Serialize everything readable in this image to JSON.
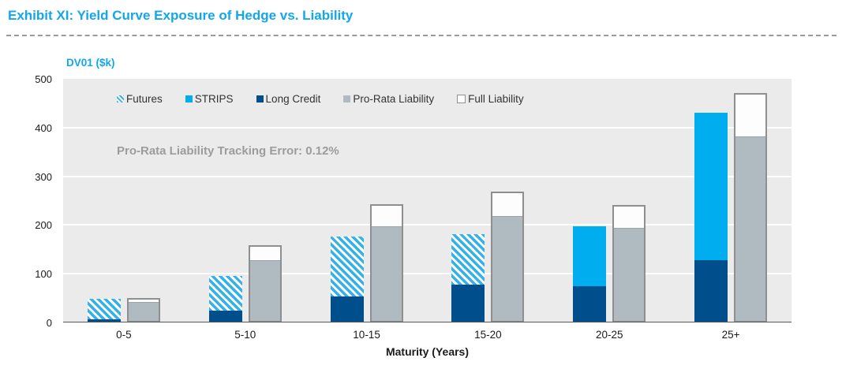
{
  "title": "Exhibit XI: Yield Curve Exposure of Hedge vs. Liability",
  "colors": {
    "title_blue": "#12a7e8",
    "futures_hatch": "#33b1e8",
    "strips": "#00aeef",
    "long_credit": "#004e8c",
    "pro_rata": "#afbac1",
    "full_liability_fill": "#fdfdfd",
    "full_liability_border": "#8f8f8f",
    "plot_background": "#ebebeb",
    "gridline": "#ffffff",
    "annotation_gray": "#9c9c9c"
  },
  "chart_data": {
    "type": "bar",
    "title": "Exhibit XI: Yield Curve Exposure of Hedge vs. Liability",
    "ylabel": "DV01 ($k)",
    "xlabel": "Maturity (Years)",
    "ylim": [
      0,
      500
    ],
    "yticks": [
      0,
      100,
      200,
      300,
      400,
      500
    ],
    "grid": true,
    "legend_position": "top-left-inside",
    "annotation": "Pro-Rata Liability Tracking Error: 0.12%",
    "categories": [
      "0-5",
      "5-10",
      "10-15",
      "15-20",
      "20-25",
      "25+"
    ],
    "legend": [
      "Futures",
      "STRIPS",
      "Long Credit",
      "Pro-Rata Liability",
      "Full Liability"
    ],
    "series": [
      {
        "name": "Long Credit",
        "group": "hedge",
        "style": "solid",
        "color": "#004e8c",
        "values": [
          7,
          25,
          54,
          77,
          75,
          128
        ]
      },
      {
        "name": "Futures",
        "group": "hedge",
        "style": "hatch",
        "color": "#33b1e8",
        "values": [
          41,
          71,
          123,
          104,
          0,
          0
        ]
      },
      {
        "name": "STRIPS",
        "group": "hedge",
        "style": "solid",
        "color": "#00aeef",
        "values": [
          0,
          0,
          0,
          0,
          122,
          302
        ]
      },
      {
        "name": "Pro-Rata Liability",
        "group": "liability",
        "style": "solid",
        "color": "#afbac1",
        "values": [
          38,
          123,
          192,
          213,
          190,
          377
        ]
      },
      {
        "name": "Full Liability",
        "group": "liability",
        "style": "outline",
        "color": "#8f8f8f",
        "values": [
          43,
          152,
          236,
          262,
          235,
          464
        ]
      }
    ]
  }
}
